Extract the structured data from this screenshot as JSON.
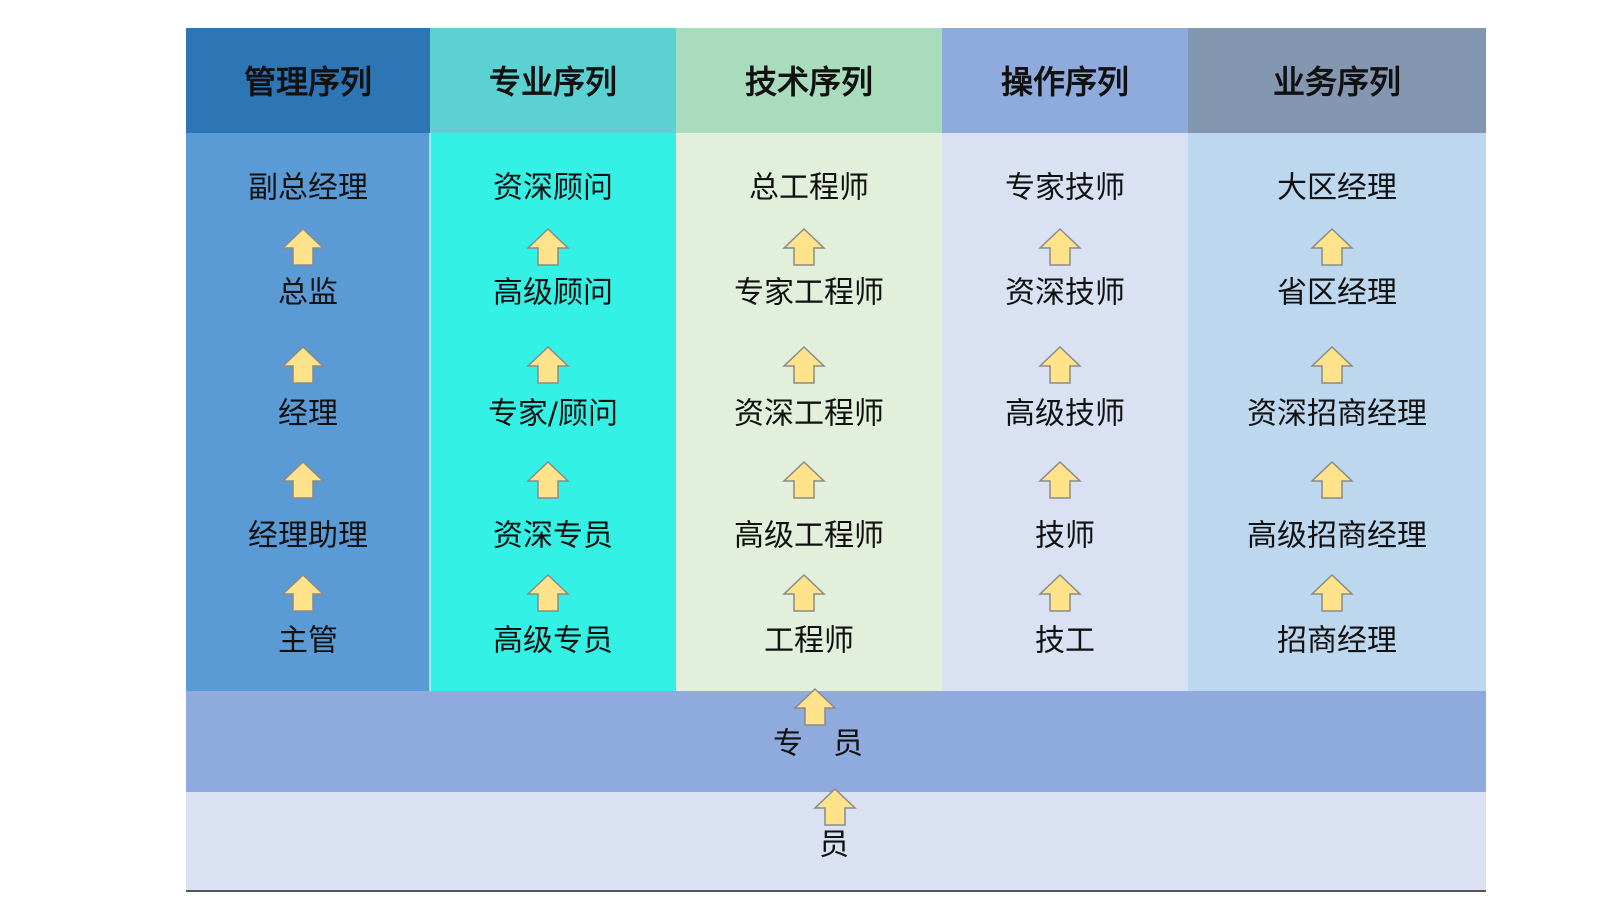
{
  "columns": [
    {
      "header": "管理序列",
      "items": [
        "副总经理",
        "总监",
        "经理",
        "经理助理",
        "主管"
      ]
    },
    {
      "header": "专业序列",
      "items": [
        "资深顾问",
        "高级顾问",
        "专家/顾问",
        "资深专员",
        "高级专员"
      ]
    },
    {
      "header": "技术序列",
      "items": [
        "总工程师",
        "专家工程师",
        "资深工程师",
        "高级工程师",
        "工程师"
      ]
    },
    {
      "header": "操作序列",
      "items": [
        "专家技师",
        "资深技师",
        "高级技师",
        "技师",
        "技工"
      ]
    },
    {
      "header": "业务序列",
      "items": [
        "大区经理",
        "省区经理",
        "资深招商经理",
        "高级招商经理",
        "招商经理"
      ]
    }
  ],
  "bands": [
    "专　员",
    "员"
  ]
}
